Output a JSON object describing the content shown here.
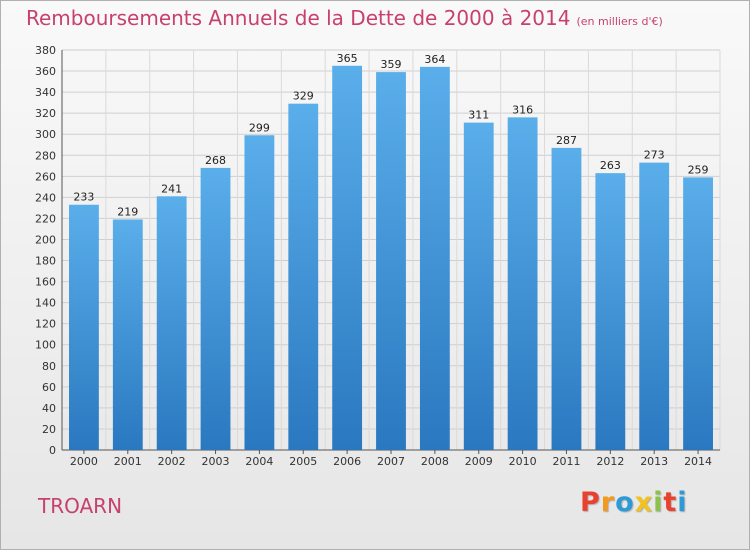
{
  "chart_data": {
    "type": "bar",
    "title": "Remboursements Annuels de la Dette de 2000 à 2014",
    "subtitle": "(en milliers d'€)",
    "xlabel": "",
    "ylabel": "",
    "categories": [
      "2000",
      "2001",
      "2002",
      "2003",
      "2004",
      "2005",
      "2006",
      "2007",
      "2008",
      "2009",
      "2010",
      "2011",
      "2012",
      "2013",
      "2014"
    ],
    "values": [
      233,
      219,
      241,
      268,
      299,
      329,
      365,
      359,
      364,
      311,
      316,
      287,
      263,
      273,
      259
    ],
    "ylim": [
      0,
      380
    ],
    "yticks": [
      0,
      20,
      40,
      60,
      80,
      100,
      120,
      140,
      160,
      180,
      200,
      220,
      240,
      260,
      280,
      300,
      320,
      340,
      360,
      380
    ],
    "grid": true,
    "legend": "none",
    "bar_color": "#3a8fd8"
  },
  "location": "TROARN",
  "logo": {
    "letters": [
      "P",
      "r",
      "o",
      "x",
      "i",
      "t",
      "i"
    ],
    "colors": [
      "#e8422f",
      "#f39a1e",
      "#2c9ad7",
      "#f3c21e",
      "#8bc34a",
      "#e8422f",
      "#2c9ad7"
    ]
  }
}
